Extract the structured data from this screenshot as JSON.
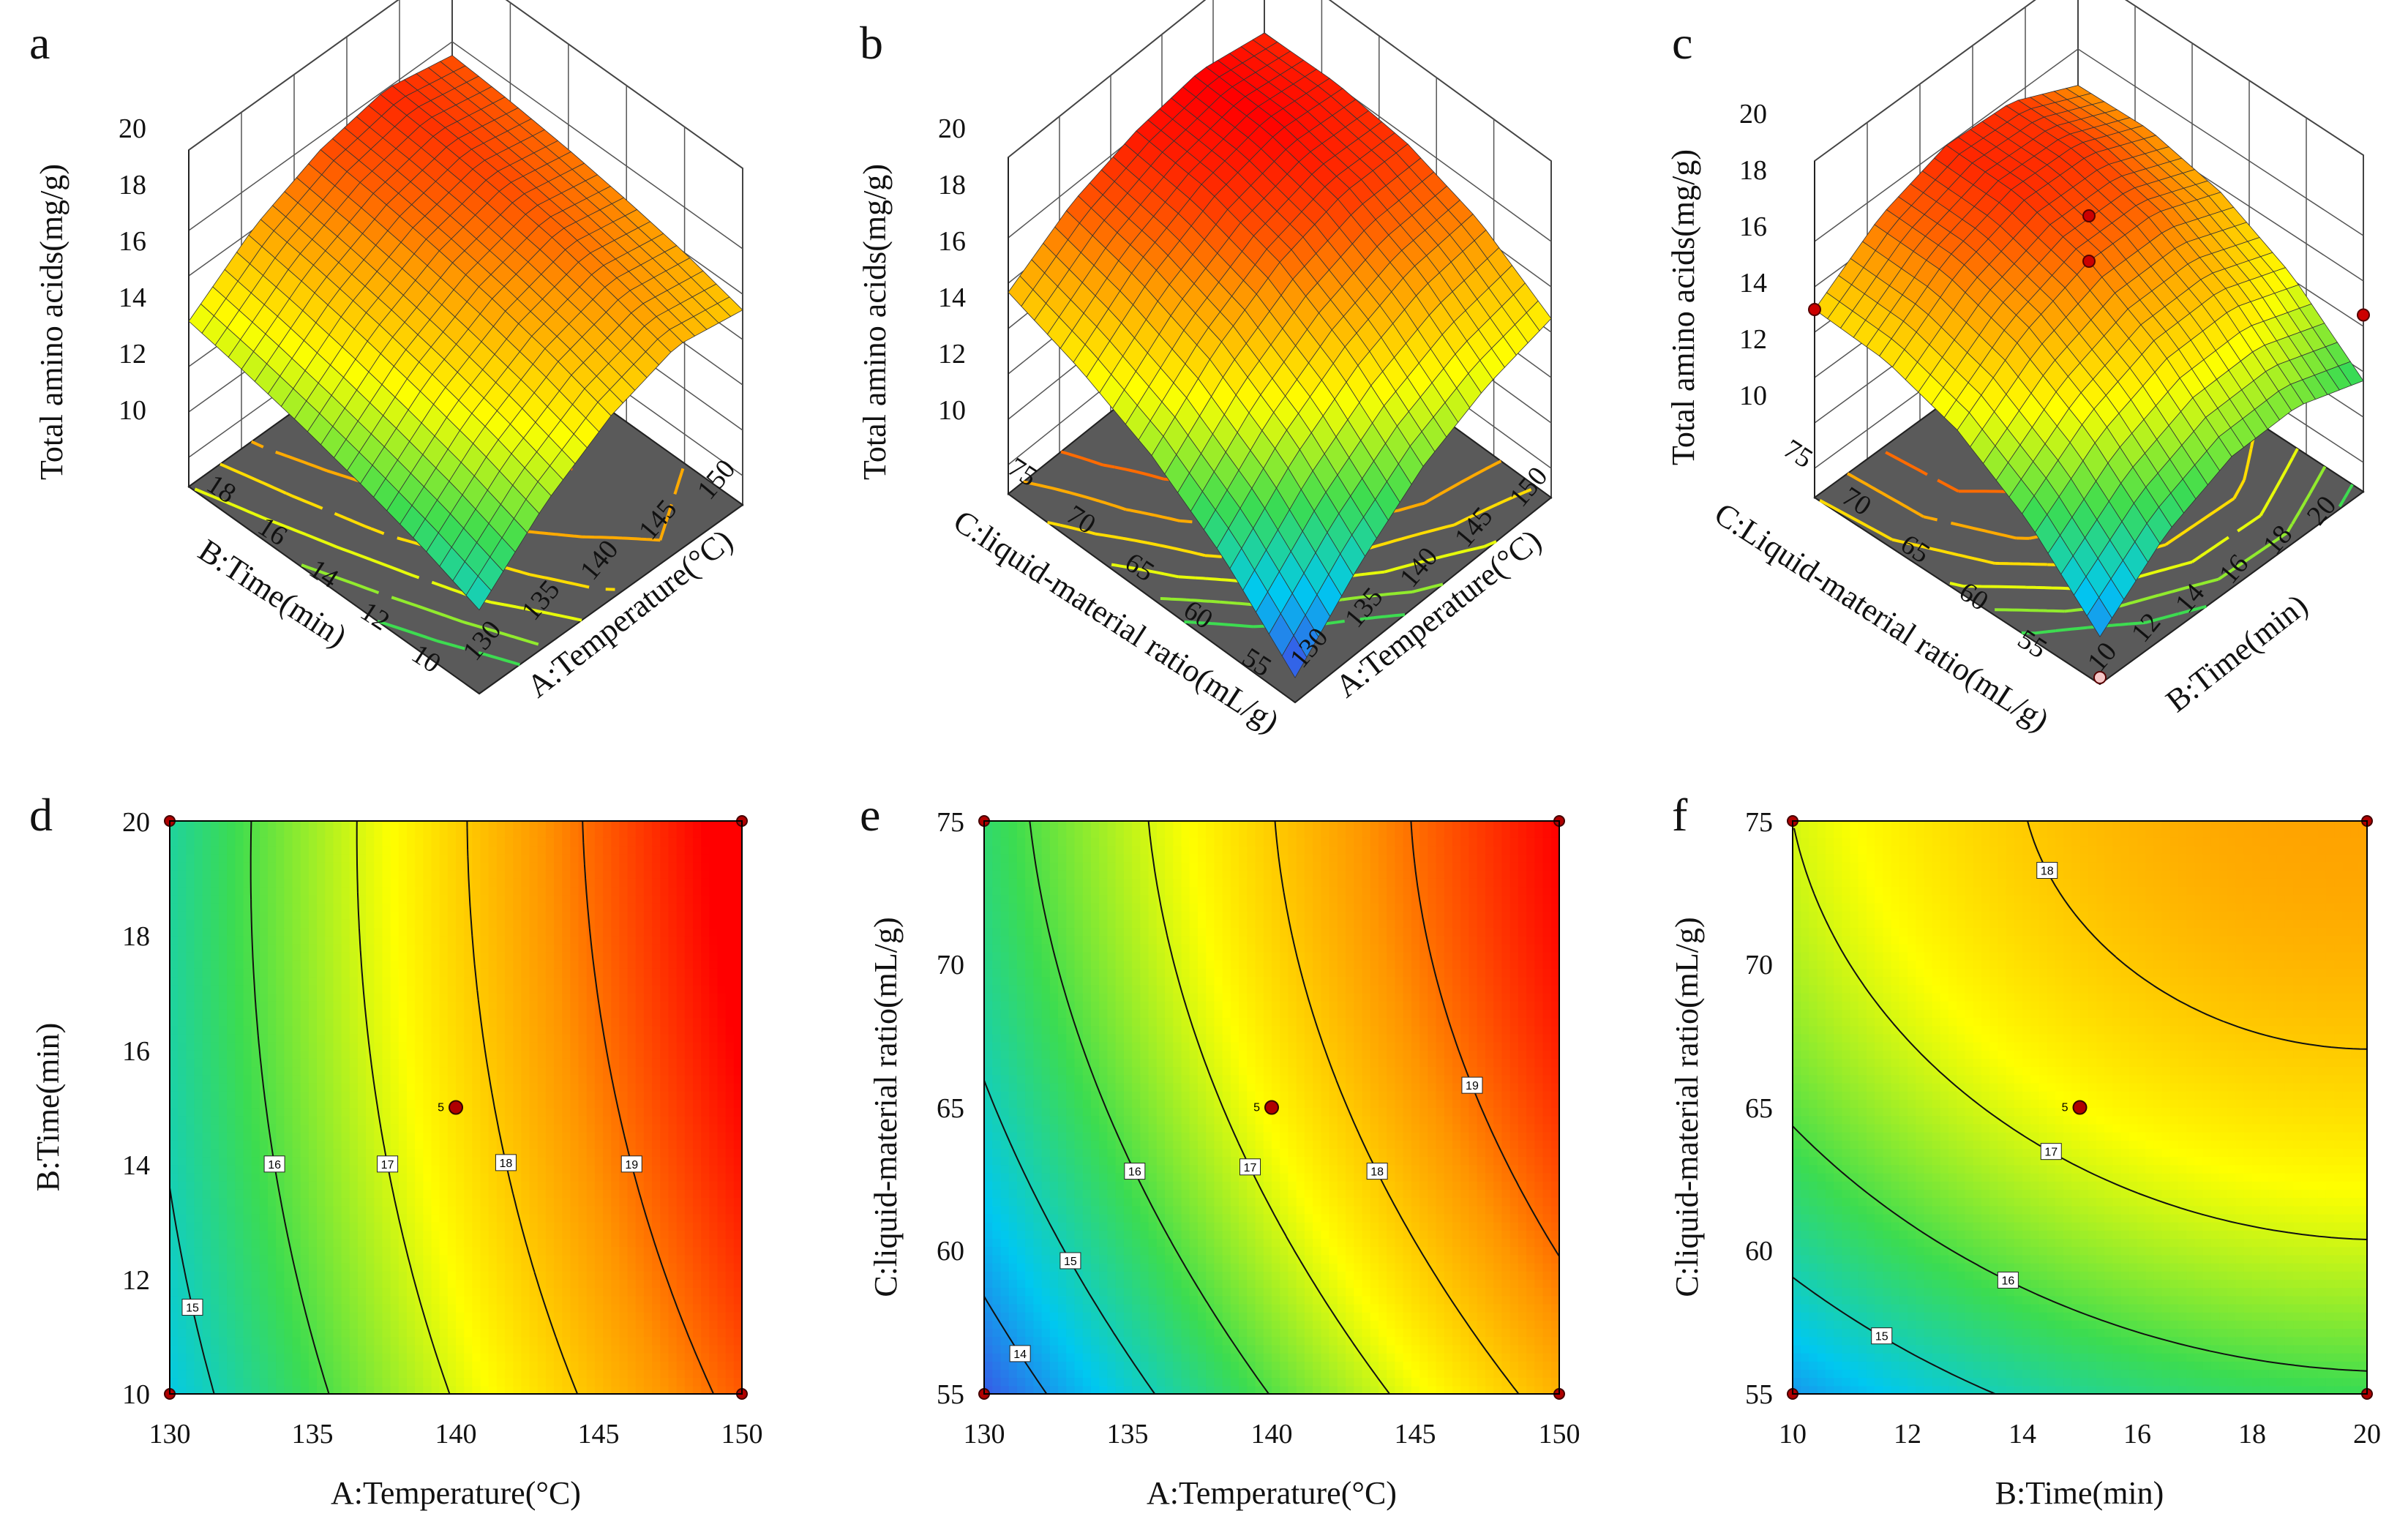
{
  "panels": [
    {
      "label": "a",
      "type": "surface",
      "xlabel": "A:Temperature(°C)",
      "ylabel": "B:Time(min)",
      "zlabel": "Total amino acids(mg/g)",
      "x_ticks": [
        "130",
        "135",
        "140",
        "145",
        "150"
      ],
      "y_ticks": [
        "10",
        "12",
        "14",
        "16",
        "18"
      ],
      "z_ticks": [
        "10",
        "12",
        "14",
        "16",
        "18",
        "20"
      ]
    },
    {
      "label": "b",
      "type": "surface",
      "xlabel": "A:Temperature(°C)",
      "ylabel": "C:liquid-material ratio(mL/g)",
      "zlabel": "Total amino acids(mg/g)",
      "x_ticks": [
        "130",
        "135",
        "140",
        "145",
        "150"
      ],
      "y_ticks": [
        "55",
        "60",
        "65",
        "70",
        "75"
      ],
      "z_ticks": [
        "10",
        "12",
        "14",
        "16",
        "18",
        "20"
      ]
    },
    {
      "label": "c",
      "type": "surface",
      "xlabel": "B:Time(min)",
      "ylabel": "C:Liquid-material ratio(mL/g)",
      "zlabel": "Total amino acids(mg/g)",
      "x_ticks": [
        "10",
        "12",
        "14",
        "16",
        "18",
        "20"
      ],
      "y_ticks": [
        "55",
        "60",
        "65",
        "70",
        "75"
      ],
      "z_ticks": [
        "10",
        "12",
        "14",
        "16",
        "18",
        "20"
      ]
    },
    {
      "label": "d",
      "type": "contour",
      "xlabel": "A:Temperature(°C)",
      "ylabel": "B:Time(min)",
      "x_ticks": [
        "130",
        "135",
        "140",
        "145",
        "150"
      ],
      "y_ticks": [
        "10",
        "12",
        "14",
        "16",
        "18",
        "20"
      ],
      "contour_labels": [
        "15",
        "16",
        "17",
        "18",
        "19"
      ],
      "center_label": "5"
    },
    {
      "label": "e",
      "type": "contour",
      "xlabel": "A:Temperature(°C)",
      "ylabel": "C:liquid-material ratio(mL/g)",
      "x_ticks": [
        "130",
        "135",
        "140",
        "145",
        "150"
      ],
      "y_ticks": [
        "55",
        "60",
        "65",
        "70",
        "75"
      ],
      "contour_labels": [
        "14",
        "15",
        "16",
        "17",
        "18",
        "19"
      ],
      "center_label": "5"
    },
    {
      "label": "f",
      "type": "contour",
      "xlabel": "B:Time(min)",
      "ylabel": "C:liquid-material ratio(mL/g)",
      "x_ticks": [
        "10",
        "12",
        "14",
        "16",
        "18",
        "20"
      ],
      "y_ticks": [
        "55",
        "60",
        "65",
        "70",
        "75"
      ],
      "contour_labels": [
        "15",
        "16",
        "17",
        "18"
      ],
      "center_label": "5"
    }
  ],
  "chart_data": [
    {
      "type": "surface",
      "title": "",
      "xlabel": "A:Temperature(°C)",
      "ylabel": "B:Time(min)",
      "zlabel": "Total amino acids(mg/g)",
      "xlim": [
        130,
        150
      ],
      "ylim": [
        10,
        20
      ],
      "zlim": [
        10,
        20
      ],
      "z_grid": [
        [
          12.4,
          13.4,
          14.2,
          14.9,
          15.5,
          16.0
        ],
        [
          15.0,
          15.9,
          16.6,
          17.2,
          17.7,
          18.1
        ],
        [
          16.8,
          17.6,
          18.2,
          18.7,
          19.1,
          19.4
        ],
        [
          17.8,
          18.5,
          19.1,
          19.5,
          19.8,
          20.0
        ],
        [
          17.3,
          18.0,
          18.5,
          18.9,
          19.2,
          19.4
        ]
      ]
    },
    {
      "type": "surface",
      "title": "",
      "xlabel": "A:Temperature(°C)",
      "ylabel": "C:liquid-material ratio(mL/g)",
      "zlabel": "Total amino acids(mg/g)",
      "xlim": [
        130,
        150
      ],
      "ylim": [
        55,
        75
      ],
      "zlim": [
        10,
        20
      ],
      "z_grid": [
        [
          9.8,
          12.8,
          15.0,
          16.5,
          17.6
        ],
        [
          12.5,
          15.4,
          17.4,
          18.6,
          19.3
        ],
        [
          14.6,
          17.2,
          19.0,
          19.9,
          20.2
        ],
        [
          15.9,
          18.3,
          19.8,
          20.5,
          20.6
        ],
        [
          16.6,
          18.6,
          19.7,
          20.1,
          20.0
        ]
      ]
    },
    {
      "type": "surface",
      "title": "",
      "xlabel": "B:Time(min)",
      "ylabel": "C:Liquid-material ratio(mL/g)",
      "zlabel": "Total amino acids(mg/g)",
      "xlim": [
        10,
        20
      ],
      "ylim": [
        55,
        75
      ],
      "zlim": [
        10,
        20
      ],
      "z_grid": [
        [
          10.8,
          13.8,
          15.8,
          16.8,
          17.0
        ],
        [
          13.2,
          16.0,
          17.9,
          18.9,
          19.0
        ],
        [
          14.5,
          17.2,
          19.0,
          19.9,
          20.0
        ],
        [
          14.6,
          17.3,
          19.0,
          19.8,
          19.8
        ],
        [
          13.6,
          16.2,
          17.8,
          18.5,
          18.4
        ]
      ],
      "points": [
        {
          "x": 15,
          "y": 65,
          "z": 19.0
        },
        {
          "x": 15,
          "y": 65,
          "z": 21.0
        },
        {
          "x": 10,
          "y": 75,
          "z": 17.0
        },
        {
          "x": 20,
          "y": 55,
          "z": 16.5
        },
        {
          "x": 10,
          "y": 55,
          "z": 9.0
        }
      ]
    },
    {
      "type": "contour",
      "title": "",
      "xlabel": "A:Temperature(°C)",
      "ylabel": "B:Time(min)",
      "xlim": [
        130,
        150
      ],
      "ylim": [
        10,
        20
      ],
      "levels": [
        15,
        16,
        17,
        18,
        19
      ],
      "center_point": {
        "x": 140,
        "y": 15,
        "n": 5
      },
      "design_points": [
        {
          "x": 130,
          "y": 10
        },
        {
          "x": 130,
          "y": 20
        },
        {
          "x": 150,
          "y": 10
        },
        {
          "x": 150,
          "y": 20
        }
      ]
    },
    {
      "type": "contour",
      "title": "",
      "xlabel": "A:Temperature(°C)",
      "ylabel": "C:liquid-material ratio(mL/g)",
      "xlim": [
        130,
        150
      ],
      "ylim": [
        55,
        75
      ],
      "levels": [
        14,
        15,
        16,
        17,
        18,
        19
      ],
      "center_point": {
        "x": 140,
        "y": 65,
        "n": 5
      },
      "design_points": [
        {
          "x": 130,
          "y": 55
        },
        {
          "x": 130,
          "y": 75
        },
        {
          "x": 150,
          "y": 55
        },
        {
          "x": 150,
          "y": 75
        }
      ]
    },
    {
      "type": "contour",
      "title": "",
      "xlabel": "B:Time(min)",
      "ylabel": "C:liquid-material ratio(mL/g)",
      "xlim": [
        10,
        20
      ],
      "ylim": [
        55,
        75
      ],
      "levels": [
        15,
        16,
        17,
        18
      ],
      "center_point": {
        "x": 15,
        "y": 65,
        "n": 5
      },
      "design_points": [
        {
          "x": 10,
          "y": 55
        },
        {
          "x": 10,
          "y": 75
        },
        {
          "x": 20,
          "y": 55
        },
        {
          "x": 20,
          "y": 75
        }
      ]
    }
  ]
}
